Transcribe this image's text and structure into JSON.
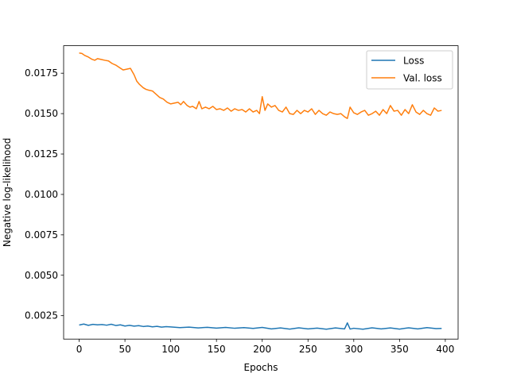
{
  "chart_data": {
    "type": "line",
    "xlabel": "Epochs",
    "ylabel": "Negative log-likelihood",
    "xlim": [
      -17,
      414
    ],
    "ylim": [
      0.00105,
      0.0192
    ],
    "xticks": [
      0,
      50,
      100,
      150,
      200,
      250,
      300,
      350,
      400
    ],
    "yticks": [
      0.0025,
      0.005,
      0.0075,
      0.01,
      0.0125,
      0.015,
      0.0175
    ],
    "ytick_labels": [
      "0.0025",
      "0.0050",
      "0.0075",
      "0.0100",
      "0.0125",
      "0.0150",
      "0.0175"
    ],
    "grid": false,
    "legend_position": "top-right",
    "series": [
      {
        "name": "Loss",
        "color": "#1f77b4",
        "x": [
          0,
          5,
          10,
          15,
          20,
          25,
          30,
          35,
          40,
          45,
          50,
          55,
          60,
          65,
          70,
          75,
          80,
          85,
          90,
          95,
          100,
          110,
          120,
          130,
          140,
          150,
          160,
          170,
          180,
          190,
          200,
          210,
          220,
          230,
          240,
          250,
          260,
          270,
          280,
          290,
          293,
          296,
          300,
          310,
          320,
          330,
          340,
          350,
          360,
          370,
          380,
          390,
          396
        ],
        "y": [
          0.00192,
          0.00198,
          0.0019,
          0.00196,
          0.00193,
          0.00195,
          0.00191,
          0.00197,
          0.00189,
          0.00193,
          0.00186,
          0.0019,
          0.00185,
          0.00188,
          0.00183,
          0.00186,
          0.00181,
          0.00184,
          0.00179,
          0.00182,
          0.0018,
          0.00176,
          0.00179,
          0.00174,
          0.00178,
          0.00173,
          0.00177,
          0.00172,
          0.00176,
          0.00171,
          0.00177,
          0.00168,
          0.00174,
          0.00167,
          0.00175,
          0.00168,
          0.00173,
          0.00166,
          0.00174,
          0.00168,
          0.00205,
          0.00167,
          0.00172,
          0.00166,
          0.00175,
          0.00168,
          0.00174,
          0.00167,
          0.00175,
          0.00168,
          0.00176,
          0.0017,
          0.00171
        ]
      },
      {
        "name": "Val. loss",
        "color": "#ff7f0e",
        "x": [
          0,
          3,
          6,
          10,
          14,
          17,
          20,
          24,
          28,
          32,
          36,
          40,
          44,
          48,
          52,
          56,
          60,
          63,
          66,
          70,
          73,
          76,
          80,
          84,
          88,
          92,
          96,
          100,
          104,
          108,
          111,
          114,
          118,
          121,
          124,
          128,
          131,
          134,
          138,
          142,
          146,
          150,
          154,
          158,
          162,
          166,
          170,
          174,
          178,
          182,
          186,
          190,
          194,
          197,
          200,
          203,
          206,
          210,
          214,
          218,
          222,
          226,
          230,
          234,
          238,
          242,
          246,
          250,
          254,
          258,
          262,
          266,
          270,
          274,
          278,
          282,
          286,
          290,
          293,
          296,
          300,
          304,
          308,
          312,
          316,
          320,
          324,
          328,
          332,
          336,
          340,
          344,
          348,
          352,
          356,
          360,
          364,
          368,
          372,
          376,
          380,
          384,
          388,
          392,
          396
        ],
        "y": [
          0.01875,
          0.01872,
          0.0186,
          0.0185,
          0.01836,
          0.0183,
          0.0184,
          0.01835,
          0.0183,
          0.01826,
          0.0181,
          0.018,
          0.01785,
          0.0177,
          0.01775,
          0.0178,
          0.0174,
          0.017,
          0.0168,
          0.0166,
          0.0165,
          0.01645,
          0.0164,
          0.0162,
          0.016,
          0.0159,
          0.0157,
          0.0156,
          0.01565,
          0.0157,
          0.01555,
          0.01575,
          0.0155,
          0.0154,
          0.01545,
          0.0153,
          0.01575,
          0.0153,
          0.0154,
          0.0153,
          0.01545,
          0.01525,
          0.0153,
          0.0152,
          0.01535,
          0.01515,
          0.0153,
          0.0152,
          0.01525,
          0.0151,
          0.0153,
          0.0151,
          0.0152,
          0.015,
          0.01605,
          0.0152,
          0.0156,
          0.0154,
          0.0155,
          0.0152,
          0.0151,
          0.0154,
          0.015,
          0.01495,
          0.0152,
          0.015,
          0.0152,
          0.0151,
          0.0153,
          0.01495,
          0.0152,
          0.015,
          0.0149,
          0.0151,
          0.015,
          0.01495,
          0.015,
          0.0148,
          0.0147,
          0.0154,
          0.01505,
          0.01495,
          0.0151,
          0.0152,
          0.0149,
          0.015,
          0.01515,
          0.0149,
          0.01525,
          0.015,
          0.0155,
          0.01515,
          0.0152,
          0.0149,
          0.01525,
          0.015,
          0.01555,
          0.0151,
          0.01495,
          0.0152,
          0.015,
          0.0149,
          0.01535,
          0.01515,
          0.0152
        ]
      }
    ]
  }
}
